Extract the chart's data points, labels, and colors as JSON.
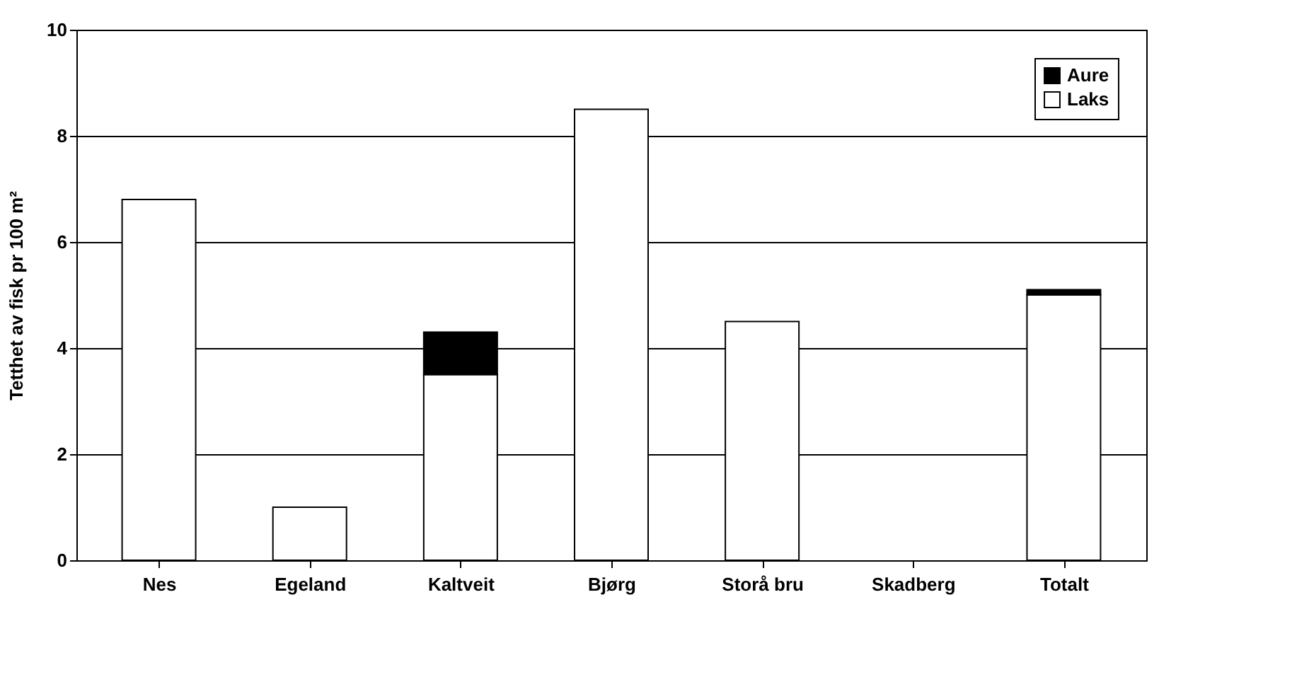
{
  "chart_data": {
    "type": "bar",
    "stacked": true,
    "ylabel": "Tetthet av fisk pr 100 m²",
    "categories": [
      "Nes",
      "Egeland",
      "Kaltveit",
      "Bjørg",
      "Storå bru",
      "Skadberg",
      "Totalt"
    ],
    "series": [
      {
        "name": "Laks",
        "color": "#ffffff",
        "values": [
          6.8,
          1.0,
          3.5,
          8.5,
          4.5,
          null,
          5.0
        ]
      },
      {
        "name": "Aure",
        "color": "#000000",
        "values": [
          null,
          null,
          0.8,
          null,
          null,
          null,
          0.1
        ]
      }
    ],
    "ylim": [
      0,
      10
    ],
    "yticks": [
      0,
      2,
      4,
      6,
      8,
      10
    ],
    "grid": "y",
    "legend": "top right"
  }
}
